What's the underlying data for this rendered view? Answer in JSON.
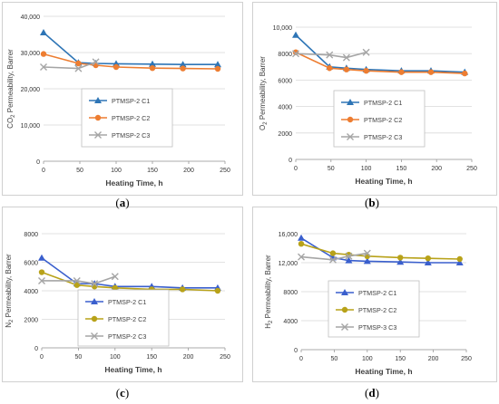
{
  "chart_data": [
    {
      "type": "line",
      "caption": "a",
      "xlabel": "Heating Time, h",
      "ylabel": "CO",
      "ylabel_sub": "2",
      "ylabel_rest": " Permeability, Barrer",
      "xlim": [
        0,
        250
      ],
      "ylim": [
        0,
        40000
      ],
      "xticks": [
        0,
        50,
        100,
        150,
        200,
        250
      ],
      "yticks": [
        0,
        10000,
        20000,
        30000,
        40000
      ],
      "ytick_labels": [
        "0",
        "10,000",
        "20,000",
        "30,000",
        "40,000"
      ],
      "grid": true,
      "legend_placement": "center",
      "series": [
        {
          "name": "PTMSP-2 C1",
          "color": "#2e75b6",
          "marker": "triangle",
          "x": [
            0,
            48,
            72,
            100,
            150,
            192,
            240
          ],
          "y": [
            35500,
            27200,
            27000,
            26900,
            26800,
            26700,
            26700
          ]
        },
        {
          "name": "PTMSP-2 C2",
          "color": "#ed7d31",
          "marker": "circle",
          "x": [
            0,
            48,
            72,
            100,
            150,
            192,
            240
          ],
          "y": [
            29600,
            27000,
            26500,
            26000,
            25700,
            25600,
            25500
          ]
        },
        {
          "name": "PTMSP-2 C3",
          "color": "#a5a5a5",
          "marker": "x",
          "x": [
            0,
            48,
            72
          ],
          "y": [
            26000,
            25600,
            27400
          ]
        }
      ]
    },
    {
      "type": "line",
      "caption": "b",
      "xlabel": "Heating Time, h",
      "ylabel": "O",
      "ylabel_sub": "2",
      "ylabel_rest": " Permeability, Barrer",
      "xlim": [
        0,
        250
      ],
      "ylim": [
        0,
        10000
      ],
      "xticks": [
        0,
        50,
        100,
        150,
        200,
        250
      ],
      "yticks": [
        0,
        2000,
        4000,
        6000,
        8000,
        10000
      ],
      "ytick_labels": [
        "0",
        "2000",
        "4000",
        "6000",
        "8000",
        "10,000"
      ],
      "grid": true,
      "legend_placement": "center",
      "series": [
        {
          "name": "PTMSP-2 C1",
          "color": "#2e75b6",
          "marker": "triangle",
          "x": [
            0,
            48,
            72,
            100,
            150,
            192,
            240
          ],
          "y": [
            9400,
            7000,
            6900,
            6800,
            6700,
            6700,
            6600
          ]
        },
        {
          "name": "PTMSP-2 C2",
          "color": "#ed7d31",
          "marker": "circle",
          "x": [
            0,
            48,
            72,
            100,
            150,
            192,
            240
          ],
          "y": [
            8100,
            6900,
            6800,
            6700,
            6600,
            6600,
            6500
          ]
        },
        {
          "name": "PTMSP-2 C3",
          "color": "#a5a5a5",
          "marker": "x",
          "x": [
            0,
            48,
            72,
            100
          ],
          "y": [
            8000,
            7900,
            7700,
            8100
          ]
        }
      ]
    },
    {
      "type": "line",
      "caption": "c",
      "xlabel": "Heating Time, h",
      "ylabel": "N",
      "ylabel_sub": "2",
      "ylabel_rest": " Permeability, Barrer",
      "xlim": [
        0,
        250
      ],
      "ylim": [
        0,
        8000
      ],
      "xticks": [
        0,
        50,
        100,
        150,
        200,
        250
      ],
      "yticks": [
        0,
        2000,
        4000,
        6000,
        8000
      ],
      "ytick_labels": [
        "0",
        "2000",
        "4000",
        "6000",
        "8000"
      ],
      "grid": true,
      "legend_placement": "center",
      "series": [
        {
          "name": "PTMSP-2 C1",
          "color": "#3a5fcd",
          "marker": "triangle",
          "x": [
            0,
            48,
            72,
            100,
            150,
            192,
            240
          ],
          "y": [
            6300,
            4500,
            4500,
            4300,
            4300,
            4200,
            4200
          ]
        },
        {
          "name": "PTMSP-2 C2",
          "color": "#b8a219",
          "marker": "circle",
          "x": [
            0,
            48,
            72,
            100,
            150,
            192,
            240
          ],
          "y": [
            5300,
            4400,
            4300,
            4200,
            4100,
            4100,
            4000
          ]
        },
        {
          "name": "PTMSP-2 C3",
          "color": "#a5a5a5",
          "marker": "x",
          "x": [
            0,
            48,
            72,
            100
          ],
          "y": [
            4700,
            4700,
            4500,
            5000
          ]
        }
      ]
    },
    {
      "type": "line",
      "caption": "d",
      "xlabel": "Heating Time, h",
      "ylabel": "H",
      "ylabel_sub": "2",
      "ylabel_rest": " Permeability, Barrer",
      "xlim": [
        0,
        250
      ],
      "ylim": [
        0,
        16000
      ],
      "xticks": [
        0,
        50,
        100,
        150,
        200,
        250
      ],
      "yticks": [
        0,
        4000,
        8000,
        12000,
        16000
      ],
      "ytick_labels": [
        "0",
        "4000",
        "8000",
        "12,000",
        "16,000"
      ],
      "grid": true,
      "legend_placement": "center",
      "series": [
        {
          "name": "PTMSP-2 C1",
          "color": "#3a5fcd",
          "marker": "triangle",
          "x": [
            0,
            48,
            72,
            100,
            150,
            192,
            240
          ],
          "y": [
            15400,
            12700,
            12300,
            12200,
            12100,
            12000,
            12000
          ]
        },
        {
          "name": "PTMSP-2 C2",
          "color": "#b8a219",
          "marker": "circle",
          "x": [
            0,
            48,
            72,
            100,
            150,
            192,
            240
          ],
          "y": [
            14600,
            13300,
            13100,
            12900,
            12700,
            12600,
            12500
          ]
        },
        {
          "name": "PTMSP-3 C3",
          "color": "#a5a5a5",
          "marker": "x",
          "x": [
            0,
            48,
            72,
            100
          ],
          "y": [
            12800,
            12400,
            12900,
            13300
          ]
        }
      ]
    }
  ]
}
